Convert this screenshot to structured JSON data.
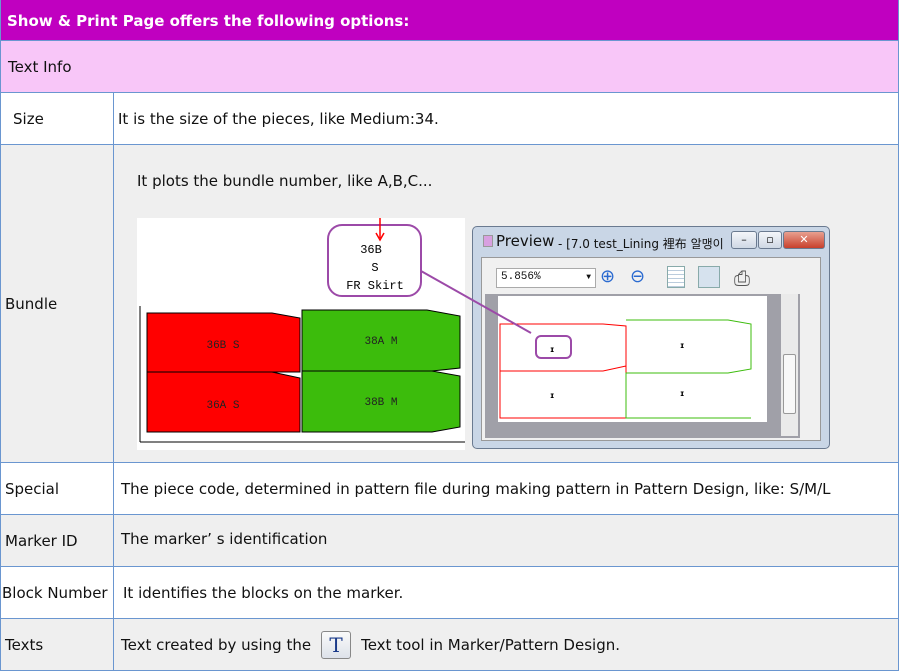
{
  "header": {
    "title": "Show & Print Page offers the following options:"
  },
  "section": {
    "title": "Text Info"
  },
  "rows": [
    {
      "label": "Size",
      "value": "It is the size of the pieces, like Medium:34."
    },
    {
      "label": "Bundle",
      "value": "It plots the bundle number, like A,B,C..."
    },
    {
      "label": "Special",
      "value": "The piece code, determined in pattern file during making pattern in Pattern Design, like: S/M/L"
    },
    {
      "label": "Marker ID",
      "value": "The marker’  s identification"
    },
    {
      "label": "Block Number",
      "value": "It identifies the blocks on the marker."
    },
    {
      "label": "Texts",
      "value_before": "Text created by using the",
      "icon_glyph": "T",
      "value_after": "Text tool in Marker/Pattern Design."
    }
  ],
  "marker": {
    "callout": [
      "36B",
      "S",
      "FR Skirt"
    ],
    "pieces": [
      "36B S",
      "38A M",
      "36A S",
      "38B M"
    ],
    "colors": {
      "red": "#ff0000",
      "green": "#3cbc0c",
      "callout": "#9c4aa8"
    }
  },
  "preview": {
    "title": "Preview",
    "subtitle": "- [7.0 test_Lining 裡布 알맹이",
    "zoom": "5.856%",
    "icons": [
      "zoom-in-icon",
      "zoom-out-icon",
      "single-page-icon",
      "multi-page-icon",
      "printer-icon"
    ]
  },
  "colors": {
    "header": "#c000c0",
    "section": "#f8c6f8",
    "border": "#6a96d0"
  }
}
